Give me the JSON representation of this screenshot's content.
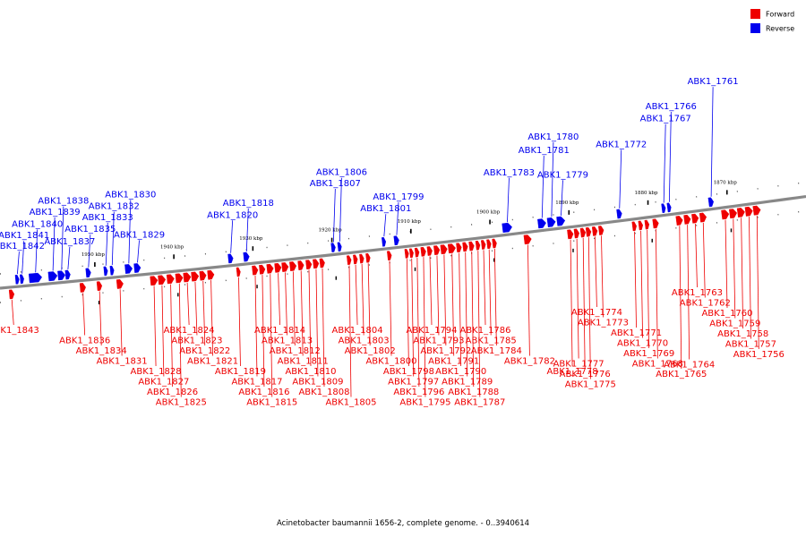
{
  "colors": {
    "forward": "#ee0000",
    "reverse": "#0000ee",
    "axis": "#888888"
  },
  "legend": [
    {
      "label": "Forward",
      "color": "#ee0000"
    },
    {
      "label": "Reverse",
      "color": "#0000ee"
    }
  ],
  "caption": "Acinetobacter baumannii 1656-2, complete genome. - 0..3940614",
  "chart_data": {
    "type": "genome-map",
    "range": {
      "start_kbp": 1860,
      "end_kbp": 1962,
      "direction": "decreasing-left-to-right"
    },
    "ticks": [
      {
        "label": "1950 kbp",
        "kbp": 1950
      },
      {
        "label": "1940 kbp",
        "kbp": 1940
      },
      {
        "label": "1930 kbp",
        "kbp": 1930
      },
      {
        "label": "1920 kbp",
        "kbp": 1920
      },
      {
        "label": "1910 kbp",
        "kbp": 1910
      },
      {
        "label": "1900 kbp",
        "kbp": 1900
      },
      {
        "label": "1890 kbp",
        "kbp": 1890
      },
      {
        "label": "1880 kbp",
        "kbp": 1880
      },
      {
        "label": "1870 kbp",
        "kbp": 1870
      }
    ],
    "genes": [
      {
        "name": "ABK1_1843",
        "strand": "forward",
        "kbp": 1960.5,
        "len": 0.6
      },
      {
        "name": "ABK1_1842",
        "strand": "reverse",
        "kbp": 1959.8,
        "len": 0.4
      },
      {
        "name": "ABK1_1841",
        "strand": "reverse",
        "kbp": 1959.2,
        "len": 0.4
      },
      {
        "name": "ABK1_1840",
        "strand": "reverse",
        "kbp": 1957.5,
        "len": 1.6
      },
      {
        "name": "ABK1_1839",
        "strand": "reverse",
        "kbp": 1955.3,
        "len": 1.1
      },
      {
        "name": "ABK1_1838",
        "strand": "reverse",
        "kbp": 1954.2,
        "len": 0.9
      },
      {
        "name": "ABK1_1837",
        "strand": "reverse",
        "kbp": 1953.4,
        "len": 0.6
      },
      {
        "name": "ABK1_1836",
        "strand": "forward",
        "kbp": 1951.5,
        "len": 0.7
      },
      {
        "name": "ABK1_1835",
        "strand": "reverse",
        "kbp": 1950.8,
        "len": 0.6
      },
      {
        "name": "ABK1_1834",
        "strand": "forward",
        "kbp": 1949.4,
        "len": 0.6
      },
      {
        "name": "ABK1_1833",
        "strand": "reverse",
        "kbp": 1948.6,
        "len": 0.4
      },
      {
        "name": "ABK1_1832",
        "strand": "reverse",
        "kbp": 1947.8,
        "len": 0.4
      },
      {
        "name": "ABK1_1831",
        "strand": "forward",
        "kbp": 1946.8,
        "len": 0.8
      },
      {
        "name": "ABK1_1830",
        "strand": "reverse",
        "kbp": 1945.7,
        "len": 0.9
      },
      {
        "name": "ABK1_1829",
        "strand": "reverse",
        "kbp": 1944.6,
        "len": 0.8
      },
      {
        "name": "ABK1_1828",
        "strand": "forward",
        "kbp": 1942.5,
        "len": 0.9
      },
      {
        "name": "ABK1_1827",
        "strand": "forward",
        "kbp": 1941.5,
        "len": 0.9
      },
      {
        "name": "ABK1_1826",
        "strand": "forward",
        "kbp": 1940.4,
        "len": 0.9
      },
      {
        "name": "ABK1_1825",
        "strand": "forward",
        "kbp": 1939.3,
        "len": 0.9
      },
      {
        "name": "ABK1_1824",
        "strand": "forward",
        "kbp": 1938.3,
        "len": 0.9
      },
      {
        "name": "ABK1_1823",
        "strand": "forward",
        "kbp": 1937.3,
        "len": 0.9
      },
      {
        "name": "ABK1_1822",
        "strand": "forward",
        "kbp": 1936.3,
        "len": 0.8
      },
      {
        "name": "ABK1_1821",
        "strand": "forward",
        "kbp": 1935.3,
        "len": 0.8
      },
      {
        "name": "ABK1_1820",
        "strand": "reverse",
        "kbp": 1932.8,
        "len": 0.6
      },
      {
        "name": "ABK1_1819",
        "strand": "forward",
        "kbp": 1931.8,
        "len": 0.3
      },
      {
        "name": "ABK1_1818",
        "strand": "reverse",
        "kbp": 1930.8,
        "len": 0.7
      },
      {
        "name": "ABK1_1817",
        "strand": "forward",
        "kbp": 1929.7,
        "len": 0.7
      },
      {
        "name": "ABK1_1816",
        "strand": "forward",
        "kbp": 1928.8,
        "len": 0.7
      },
      {
        "name": "ABK1_1815",
        "strand": "forward",
        "kbp": 1927.8,
        "len": 0.8
      },
      {
        "name": "ABK1_1814",
        "strand": "forward",
        "kbp": 1926.8,
        "len": 0.8
      },
      {
        "name": "ABK1_1813",
        "strand": "forward",
        "kbp": 1925.9,
        "len": 0.8
      },
      {
        "name": "ABK1_1812",
        "strand": "forward",
        "kbp": 1924.9,
        "len": 0.8
      },
      {
        "name": "ABK1_1811",
        "strand": "forward",
        "kbp": 1923.9,
        "len": 0.7
      },
      {
        "name": "ABK1_1810",
        "strand": "forward",
        "kbp": 1922.9,
        "len": 0.7
      },
      {
        "name": "ABK1_1809",
        "strand": "forward",
        "kbp": 1922.0,
        "len": 0.7
      },
      {
        "name": "ABK1_1808",
        "strand": "forward",
        "kbp": 1921.2,
        "len": 0.6
      },
      {
        "name": "ABK1_1807",
        "strand": "reverse",
        "kbp": 1919.8,
        "len": 0.5
      },
      {
        "name": "ABK1_1806",
        "strand": "reverse",
        "kbp": 1919.0,
        "len": 0.4
      },
      {
        "name": "ABK1_1805",
        "strand": "forward",
        "kbp": 1917.8,
        "len": 0.5
      },
      {
        "name": "ABK1_1804",
        "strand": "forward",
        "kbp": 1917.0,
        "len": 0.5
      },
      {
        "name": "ABK1_1803",
        "strand": "forward",
        "kbp": 1916.2,
        "len": 0.5
      },
      {
        "name": "ABK1_1802",
        "strand": "forward",
        "kbp": 1915.4,
        "len": 0.5
      },
      {
        "name": "ABK1_1801",
        "strand": "reverse",
        "kbp": 1913.4,
        "len": 0.4
      },
      {
        "name": "ABK1_1800",
        "strand": "forward",
        "kbp": 1912.7,
        "len": 0.5
      },
      {
        "name": "ABK1_1799",
        "strand": "reverse",
        "kbp": 1911.8,
        "len": 0.6
      },
      {
        "name": "ABK1_1798",
        "strand": "forward",
        "kbp": 1910.5,
        "len": 0.4
      },
      {
        "name": "ABK1_1797",
        "strand": "forward",
        "kbp": 1909.9,
        "len": 0.4
      },
      {
        "name": "ABK1_1796",
        "strand": "forward",
        "kbp": 1909.2,
        "len": 0.5
      },
      {
        "name": "ABK1_1795",
        "strand": "forward",
        "kbp": 1908.4,
        "len": 0.6
      },
      {
        "name": "ABK1_1794",
        "strand": "forward",
        "kbp": 1907.6,
        "len": 0.6
      },
      {
        "name": "ABK1_1793",
        "strand": "forward",
        "kbp": 1906.7,
        "len": 0.7
      },
      {
        "name": "ABK1_1792",
        "strand": "forward",
        "kbp": 1905.8,
        "len": 0.8
      },
      {
        "name": "ABK1_1791",
        "strand": "forward",
        "kbp": 1904.8,
        "len": 0.9
      },
      {
        "name": "ABK1_1790",
        "strand": "forward",
        "kbp": 1903.9,
        "len": 0.6
      },
      {
        "name": "ABK1_1789",
        "strand": "forward",
        "kbp": 1903.1,
        "len": 0.6
      },
      {
        "name": "ABK1_1788",
        "strand": "forward",
        "kbp": 1902.3,
        "len": 0.6
      },
      {
        "name": "ABK1_1787",
        "strand": "forward",
        "kbp": 1901.5,
        "len": 0.5
      },
      {
        "name": "ABK1_1786",
        "strand": "forward",
        "kbp": 1900.8,
        "len": 0.5
      },
      {
        "name": "ABK1_1785",
        "strand": "forward",
        "kbp": 1900.1,
        "len": 0.5
      },
      {
        "name": "ABK1_1784",
        "strand": "forward",
        "kbp": 1899.4,
        "len": 0.5
      },
      {
        "name": "ABK1_1783",
        "strand": "reverse",
        "kbp": 1897.8,
        "len": 1.2
      },
      {
        "name": "ABK1_1782",
        "strand": "forward",
        "kbp": 1895.2,
        "len": 0.9
      },
      {
        "name": "ABK1_1781",
        "strand": "reverse",
        "kbp": 1893.4,
        "len": 1.0
      },
      {
        "name": "ABK1_1780",
        "strand": "reverse",
        "kbp": 1892.2,
        "len": 1.0
      },
      {
        "name": "ABK1_1779",
        "strand": "reverse",
        "kbp": 1891.0,
        "len": 1.0
      },
      {
        "name": "ABK1_1778",
        "strand": "forward",
        "kbp": 1889.8,
        "len": 0.7
      },
      {
        "name": "ABK1_1777",
        "strand": "forward",
        "kbp": 1889.0,
        "len": 0.6
      },
      {
        "name": "ABK1_1776",
        "strand": "forward",
        "kbp": 1888.2,
        "len": 0.6
      },
      {
        "name": "ABK1_1775",
        "strand": "forward",
        "kbp": 1887.5,
        "len": 0.6
      },
      {
        "name": "ABK1_1774",
        "strand": "forward",
        "kbp": 1886.7,
        "len": 0.6
      },
      {
        "name": "ABK1_1773",
        "strand": "forward",
        "kbp": 1885.9,
        "len": 0.6
      },
      {
        "name": "ABK1_1772",
        "strand": "reverse",
        "kbp": 1883.6,
        "len": 0.6
      },
      {
        "name": "ABK1_1771",
        "strand": "forward",
        "kbp": 1881.7,
        "len": 0.5
      },
      {
        "name": "ABK1_1770",
        "strand": "forward",
        "kbp": 1880.9,
        "len": 0.5
      },
      {
        "name": "ABK1_1769",
        "strand": "forward",
        "kbp": 1880.1,
        "len": 0.5
      },
      {
        "name": "ABK1_1768",
        "strand": "forward",
        "kbp": 1879.0,
        "len": 0.7
      },
      {
        "name": "ABK1_1767",
        "strand": "reverse",
        "kbp": 1878.0,
        "len": 0.4
      },
      {
        "name": "ABK1_1766",
        "strand": "reverse",
        "kbp": 1877.3,
        "len": 0.4
      },
      {
        "name": "ABK1_1765",
        "strand": "forward",
        "kbp": 1876.0,
        "len": 0.8
      },
      {
        "name": "ABK1_1764",
        "strand": "forward",
        "kbp": 1875.0,
        "len": 0.8
      },
      {
        "name": "ABK1_1763",
        "strand": "forward",
        "kbp": 1874.0,
        "len": 0.8
      },
      {
        "name": "ABK1_1762",
        "strand": "forward",
        "kbp": 1873.0,
        "len": 0.8
      },
      {
        "name": "ABK1_1761",
        "strand": "reverse",
        "kbp": 1872.0,
        "len": 0.6
      },
      {
        "name": "ABK1_1760",
        "strand": "forward",
        "kbp": 1870.2,
        "len": 0.9
      },
      {
        "name": "ABK1_1759",
        "strand": "forward",
        "kbp": 1869.2,
        "len": 0.9
      },
      {
        "name": "ABK1_1758",
        "strand": "forward",
        "kbp": 1868.2,
        "len": 0.9
      },
      {
        "name": "ABK1_1757",
        "strand": "forward",
        "kbp": 1867.2,
        "len": 0.9
      },
      {
        "name": "ABK1_1756",
        "strand": "forward",
        "kbp": 1866.2,
        "len": 0.9
      }
    ]
  }
}
